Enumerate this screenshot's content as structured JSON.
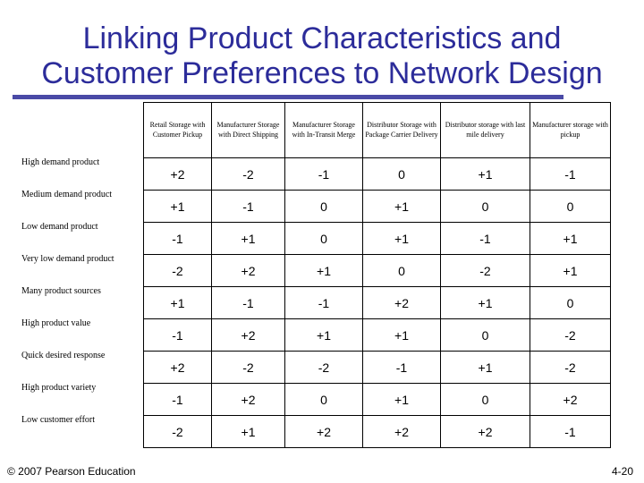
{
  "title_line1": "Linking Product Characteristics and",
  "title_line2": "Customer Preferences to Network Design",
  "columns": [
    "Retail Storage with Customer Pickup",
    "Manufacturer Storage with Direct Shipping",
    "Manufacturer Storage with In-Transit Merge",
    "Distributor Storage with Package Carrier Delivery",
    "Distributor storage with last mile delivery",
    "Manufacturer storage with pickup"
  ],
  "rows": [
    {
      "label": "High demand product",
      "values": [
        "+2",
        "-2",
        "-1",
        "0",
        "+1",
        "-1"
      ]
    },
    {
      "label": "Medium demand product",
      "values": [
        "+1",
        "-1",
        "0",
        "+1",
        "0",
        "0"
      ]
    },
    {
      "label": "Low demand product",
      "values": [
        "-1",
        "+1",
        "0",
        "+1",
        "-1",
        "+1"
      ]
    },
    {
      "label": "Very low demand product",
      "values": [
        "-2",
        "+2",
        "+1",
        "0",
        "-2",
        "+1"
      ]
    },
    {
      "label": "Many product sources",
      "values": [
        "+1",
        "-1",
        "-1",
        "+2",
        "+1",
        "0"
      ]
    },
    {
      "label": "High product value",
      "values": [
        "-1",
        "+2",
        "+1",
        "+1",
        "0",
        "-2"
      ]
    },
    {
      "label": "Quick desired response",
      "values": [
        "+2",
        "-2",
        "-2",
        "-1",
        "+1",
        "-2"
      ]
    },
    {
      "label": "High product variety",
      "values": [
        "-1",
        "+2",
        "0",
        "+1",
        "0",
        "+2"
      ]
    },
    {
      "label": "Low customer effort",
      "values": [
        "-2",
        "+1",
        "+2",
        "+2",
        "+2",
        "-1"
      ]
    }
  ],
  "footer_left": "© 2007 Pearson Education",
  "footer_right": "4-20",
  "colors": {
    "title": "#2c2c9a",
    "rule": "#4a4aa6"
  }
}
